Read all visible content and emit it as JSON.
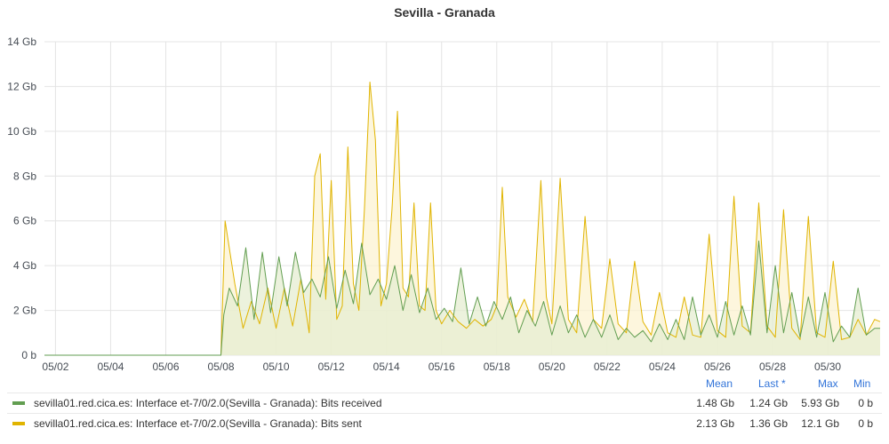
{
  "chart_data": {
    "type": "area",
    "title": "Sevilla - Granada",
    "x_tick_labels": [
      "05/02",
      "05/04",
      "05/06",
      "05/08",
      "05/10",
      "05/12",
      "05/14",
      "05/16",
      "05/18",
      "05/20",
      "05/22",
      "05/24",
      "05/26",
      "05/28",
      "05/30"
    ],
    "x_range_days": [
      1.6,
      31.9
    ],
    "y_tick_labels": [
      "0 b",
      "2 Gb",
      "4 Gb",
      "6 Gb",
      "8 Gb",
      "10 Gb",
      "12 Gb",
      "14 Gb"
    ],
    "y_unit": "Gb",
    "ylim": [
      0,
      14
    ],
    "grid": true,
    "legend_placement": "bottom",
    "series": [
      {
        "name": "sevilla01.red.cica.es: Interface et-7/0/2.0(Sevilla - Granada): Bits received",
        "color": "#629e51",
        "fill": "#e5edd2",
        "days": [
          1.6,
          8.0,
          8.1,
          8.3,
          8.6,
          8.9,
          9.2,
          9.5,
          9.8,
          10.1,
          10.4,
          10.7,
          11.0,
          11.3,
          11.6,
          11.9,
          12.2,
          12.5,
          12.8,
          13.1,
          13.4,
          13.7,
          14.0,
          14.3,
          14.6,
          14.9,
          15.2,
          15.5,
          15.8,
          16.1,
          16.4,
          16.7,
          17.0,
          17.3,
          17.6,
          17.9,
          18.2,
          18.5,
          18.8,
          19.1,
          19.4,
          19.7,
          20.0,
          20.3,
          20.6,
          20.9,
          21.2,
          21.5,
          21.8,
          22.1,
          22.4,
          22.7,
          23.0,
          23.3,
          23.6,
          23.9,
          24.2,
          24.5,
          24.8,
          25.1,
          25.4,
          25.7,
          26.0,
          26.3,
          26.6,
          26.9,
          27.2,
          27.5,
          27.8,
          28.1,
          28.4,
          28.7,
          29.0,
          29.3,
          29.6,
          29.9,
          30.2,
          30.5,
          30.8,
          31.1,
          31.4,
          31.7,
          31.9
        ],
        "values": [
          0,
          0,
          1.8,
          3.0,
          2.2,
          4.8,
          1.6,
          4.6,
          1.9,
          4.4,
          2.2,
          4.6,
          2.8,
          3.4,
          2.6,
          4.4,
          2.1,
          3.8,
          2.3,
          5.0,
          2.7,
          3.4,
          2.5,
          4.0,
          2.0,
          3.6,
          1.9,
          3.0,
          1.6,
          2.1,
          1.5,
          3.9,
          1.4,
          2.6,
          1.3,
          2.4,
          1.6,
          2.6,
          1.0,
          2.0,
          1.3,
          2.4,
          0.9,
          2.2,
          1.0,
          1.8,
          0.8,
          1.6,
          0.8,
          1.8,
          0.7,
          1.2,
          0.8,
          1.1,
          0.6,
          1.4,
          0.7,
          1.6,
          0.7,
          2.6,
          0.9,
          1.8,
          0.8,
          2.4,
          0.9,
          2.2,
          0.9,
          5.1,
          1.0,
          4.0,
          1.0,
          2.8,
          0.8,
          2.6,
          0.8,
          2.8,
          0.6,
          1.3,
          0.8,
          3.0,
          0.9,
          1.2,
          1.2
        ],
        "mean": "1.48 Gb",
        "last": "1.24 Gb",
        "max": "5.93 Gb",
        "min": "0 b"
      },
      {
        "name": "sevilla01.red.cica.es: Interface et-7/0/2.0(Sevilla - Granada): Bits sent",
        "color": "#e0b400",
        "fill": "#fcf3d2",
        "days": [
          1.6,
          8.0,
          8.15,
          8.5,
          8.8,
          9.1,
          9.4,
          9.7,
          10.0,
          10.3,
          10.6,
          10.9,
          11.2,
          11.4,
          11.6,
          11.8,
          12.0,
          12.2,
          12.4,
          12.6,
          12.8,
          13.0,
          13.2,
          13.4,
          13.6,
          13.8,
          14.0,
          14.2,
          14.4,
          14.6,
          14.8,
          15.0,
          15.2,
          15.4,
          15.6,
          15.8,
          16.0,
          16.3,
          16.6,
          16.9,
          17.2,
          17.5,
          17.8,
          18.0,
          18.2,
          18.4,
          18.7,
          19.0,
          19.3,
          19.6,
          19.8,
          20.0,
          20.3,
          20.6,
          20.9,
          21.2,
          21.5,
          21.8,
          22.1,
          22.4,
          22.7,
          23.0,
          23.3,
          23.6,
          23.9,
          24.2,
          24.5,
          24.8,
          25.1,
          25.4,
          25.7,
          26.0,
          26.3,
          26.6,
          26.9,
          27.2,
          27.5,
          27.8,
          28.1,
          28.4,
          28.7,
          29.0,
          29.3,
          29.6,
          29.9,
          30.2,
          30.5,
          30.8,
          31.1,
          31.4,
          31.7,
          31.9
        ],
        "values": [
          0,
          0,
          6.0,
          3.2,
          1.2,
          2.4,
          1.4,
          3.0,
          1.2,
          3.0,
          1.3,
          3.4,
          1.0,
          8.0,
          9.0,
          2.5,
          7.8,
          1.6,
          2.2,
          9.3,
          3.2,
          2.0,
          6.5,
          12.2,
          9.6,
          2.2,
          3.2,
          6.5,
          10.9,
          3.0,
          2.6,
          6.8,
          2.2,
          2.0,
          6.8,
          2.0,
          1.4,
          2.0,
          1.5,
          1.2,
          1.6,
          1.3,
          1.6,
          2.2,
          7.5,
          2.6,
          1.7,
          2.5,
          1.5,
          7.8,
          2.6,
          1.4,
          7.9,
          1.6,
          1.0,
          6.2,
          1.6,
          1.2,
          4.3,
          1.4,
          1.0,
          4.2,
          1.5,
          0.9,
          2.8,
          1.0,
          0.8,
          2.6,
          0.9,
          0.8,
          5.4,
          1.1,
          0.8,
          7.1,
          1.3,
          1.0,
          6.8,
          1.3,
          0.8,
          6.5,
          1.2,
          0.7,
          6.2,
          1.0,
          0.8,
          4.2,
          0.7,
          0.8,
          1.6,
          0.9,
          1.6,
          1.5
        ],
        "mean": "2.13 Gb",
        "last": "1.36 Gb",
        "max": "12.1 Gb",
        "min": "0 b"
      }
    ],
    "legend_columns": [
      "Mean",
      "Last *",
      "Max",
      "Min"
    ]
  }
}
